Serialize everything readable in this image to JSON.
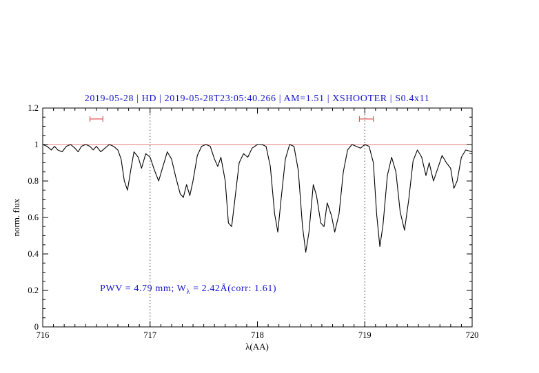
{
  "colors": {
    "accent_blue": "#1414cc",
    "spectrum_black": "#000000",
    "reference_red": "#e07a7a",
    "marker_red": "#e05555",
    "dotted_guide": "#333333",
    "axis": "#000000",
    "background": "#ffffff"
  },
  "annotation": {
    "prefix": "PWV = 4.79 mm; W",
    "sub": "λ",
    "suffix": " = 2.42Å(corr: 1.61)"
  },
  "chart_data": {
    "type": "line",
    "title": "2019-05-28 | HD | 2019-05-28T23:05:40.266 | AM=1.51 | XSHOOTER | S0.4x11",
    "xlabel": "λ(AA)",
    "ylabel": "norm. flux",
    "xlim": [
      716,
      720
    ],
    "ylim": [
      0,
      1.2
    ],
    "grid": false,
    "legend": "none",
    "x_ticks": {
      "values": [
        716,
        717,
        718,
        719,
        720
      ],
      "labels": [
        "716",
        "717",
        "718",
        "719",
        "720"
      ],
      "minor_step": 0.1
    },
    "y_ticks": {
      "values": [
        0,
        0.2,
        0.4,
        0.6,
        0.8,
        1,
        1.2
      ],
      "labels": [
        "0",
        "0.2",
        "0.4",
        "0.6",
        "0.8",
        "1",
        "1.2"
      ],
      "minor_step": 0.05
    },
    "reference_line_y": 1.0,
    "dotted_vlines_x": [
      717,
      719
    ],
    "range_markers": [
      {
        "x_start": 716.44,
        "x_end": 716.56,
        "y": 1.14
      },
      {
        "x_start": 718.95,
        "x_end": 719.08,
        "y": 1.14
      }
    ],
    "annotation_text": "PWV = 4.79 mm; W_λ = 2.42Å(corr: 1.61)",
    "series": [
      {
        "name": "normalized-telluric-spectrum",
        "color": "#000000",
        "points": [
          [
            716.0,
            1.0
          ],
          [
            716.04,
            0.99
          ],
          [
            716.08,
            0.97
          ],
          [
            716.11,
            0.99
          ],
          [
            716.14,
            0.97
          ],
          [
            716.18,
            0.96
          ],
          [
            716.22,
            0.99
          ],
          [
            716.26,
            1.0
          ],
          [
            716.3,
            0.98
          ],
          [
            716.33,
            0.96
          ],
          [
            716.36,
            0.99
          ],
          [
            716.4,
            1.0
          ],
          [
            716.44,
            0.99
          ],
          [
            716.47,
            0.97
          ],
          [
            716.5,
            0.99
          ],
          [
            716.54,
            0.96
          ],
          [
            716.58,
            0.98
          ],
          [
            716.62,
            1.0
          ],
          [
            716.66,
            0.99
          ],
          [
            716.7,
            0.97
          ],
          [
            716.73,
            0.92
          ],
          [
            716.76,
            0.8
          ],
          [
            716.79,
            0.75
          ],
          [
            716.82,
            0.86
          ],
          [
            716.85,
            0.96
          ],
          [
            716.89,
            0.93
          ],
          [
            716.92,
            0.87
          ],
          [
            716.96,
            0.95
          ],
          [
            717.0,
            0.93
          ],
          [
            717.04,
            0.86
          ],
          [
            717.08,
            0.8
          ],
          [
            717.12,
            0.88
          ],
          [
            717.16,
            0.96
          ],
          [
            717.2,
            0.92
          ],
          [
            717.24,
            0.82
          ],
          [
            717.28,
            0.73
          ],
          [
            717.31,
            0.71
          ],
          [
            717.34,
            0.78
          ],
          [
            717.37,
            0.72
          ],
          [
            717.4,
            0.8
          ],
          [
            717.44,
            0.94
          ],
          [
            717.48,
            0.99
          ],
          [
            717.52,
            1.0
          ],
          [
            717.56,
            0.99
          ],
          [
            717.6,
            0.92
          ],
          [
            717.63,
            0.88
          ],
          [
            717.66,
            0.93
          ],
          [
            717.7,
            0.8
          ],
          [
            717.73,
            0.57
          ],
          [
            717.76,
            0.55
          ],
          [
            717.79,
            0.7
          ],
          [
            717.83,
            0.9
          ],
          [
            717.87,
            0.95
          ],
          [
            717.91,
            0.93
          ],
          [
            717.95,
            0.98
          ],
          [
            718.0,
            1.0
          ],
          [
            718.04,
            1.0
          ],
          [
            718.08,
            0.99
          ],
          [
            718.12,
            0.88
          ],
          [
            718.16,
            0.62
          ],
          [
            718.19,
            0.52
          ],
          [
            718.22,
            0.7
          ],
          [
            718.26,
            0.92
          ],
          [
            718.3,
            1.0
          ],
          [
            718.34,
            0.99
          ],
          [
            718.38,
            0.86
          ],
          [
            718.42,
            0.55
          ],
          [
            718.45,
            0.41
          ],
          [
            718.48,
            0.52
          ],
          [
            718.52,
            0.78
          ],
          [
            718.55,
            0.72
          ],
          [
            718.59,
            0.57
          ],
          [
            718.62,
            0.55
          ],
          [
            718.65,
            0.68
          ],
          [
            718.69,
            0.61
          ],
          [
            718.72,
            0.52
          ],
          [
            718.76,
            0.62
          ],
          [
            718.8,
            0.85
          ],
          [
            718.84,
            0.97
          ],
          [
            718.88,
            1.0
          ],
          [
            718.92,
            0.99
          ],
          [
            718.96,
            0.98
          ],
          [
            719.0,
            1.0
          ],
          [
            719.04,
            0.99
          ],
          [
            719.08,
            0.9
          ],
          [
            719.11,
            0.62
          ],
          [
            719.14,
            0.44
          ],
          [
            719.17,
            0.56
          ],
          [
            719.21,
            0.83
          ],
          [
            719.25,
            0.93
          ],
          [
            719.29,
            0.85
          ],
          [
            719.33,
            0.63
          ],
          [
            719.37,
            0.53
          ],
          [
            719.41,
            0.7
          ],
          [
            719.45,
            0.91
          ],
          [
            719.49,
            0.97
          ],
          [
            719.53,
            0.93
          ],
          [
            719.57,
            0.83
          ],
          [
            719.6,
            0.9
          ],
          [
            719.64,
            0.8
          ],
          [
            719.68,
            0.87
          ],
          [
            719.72,
            0.94
          ],
          [
            719.76,
            0.9
          ],
          [
            719.8,
            0.87
          ],
          [
            719.83,
            0.76
          ],
          [
            719.86,
            0.8
          ],
          [
            719.9,
            0.93
          ],
          [
            719.94,
            0.97
          ],
          [
            720.0,
            0.96
          ]
        ]
      }
    ]
  }
}
